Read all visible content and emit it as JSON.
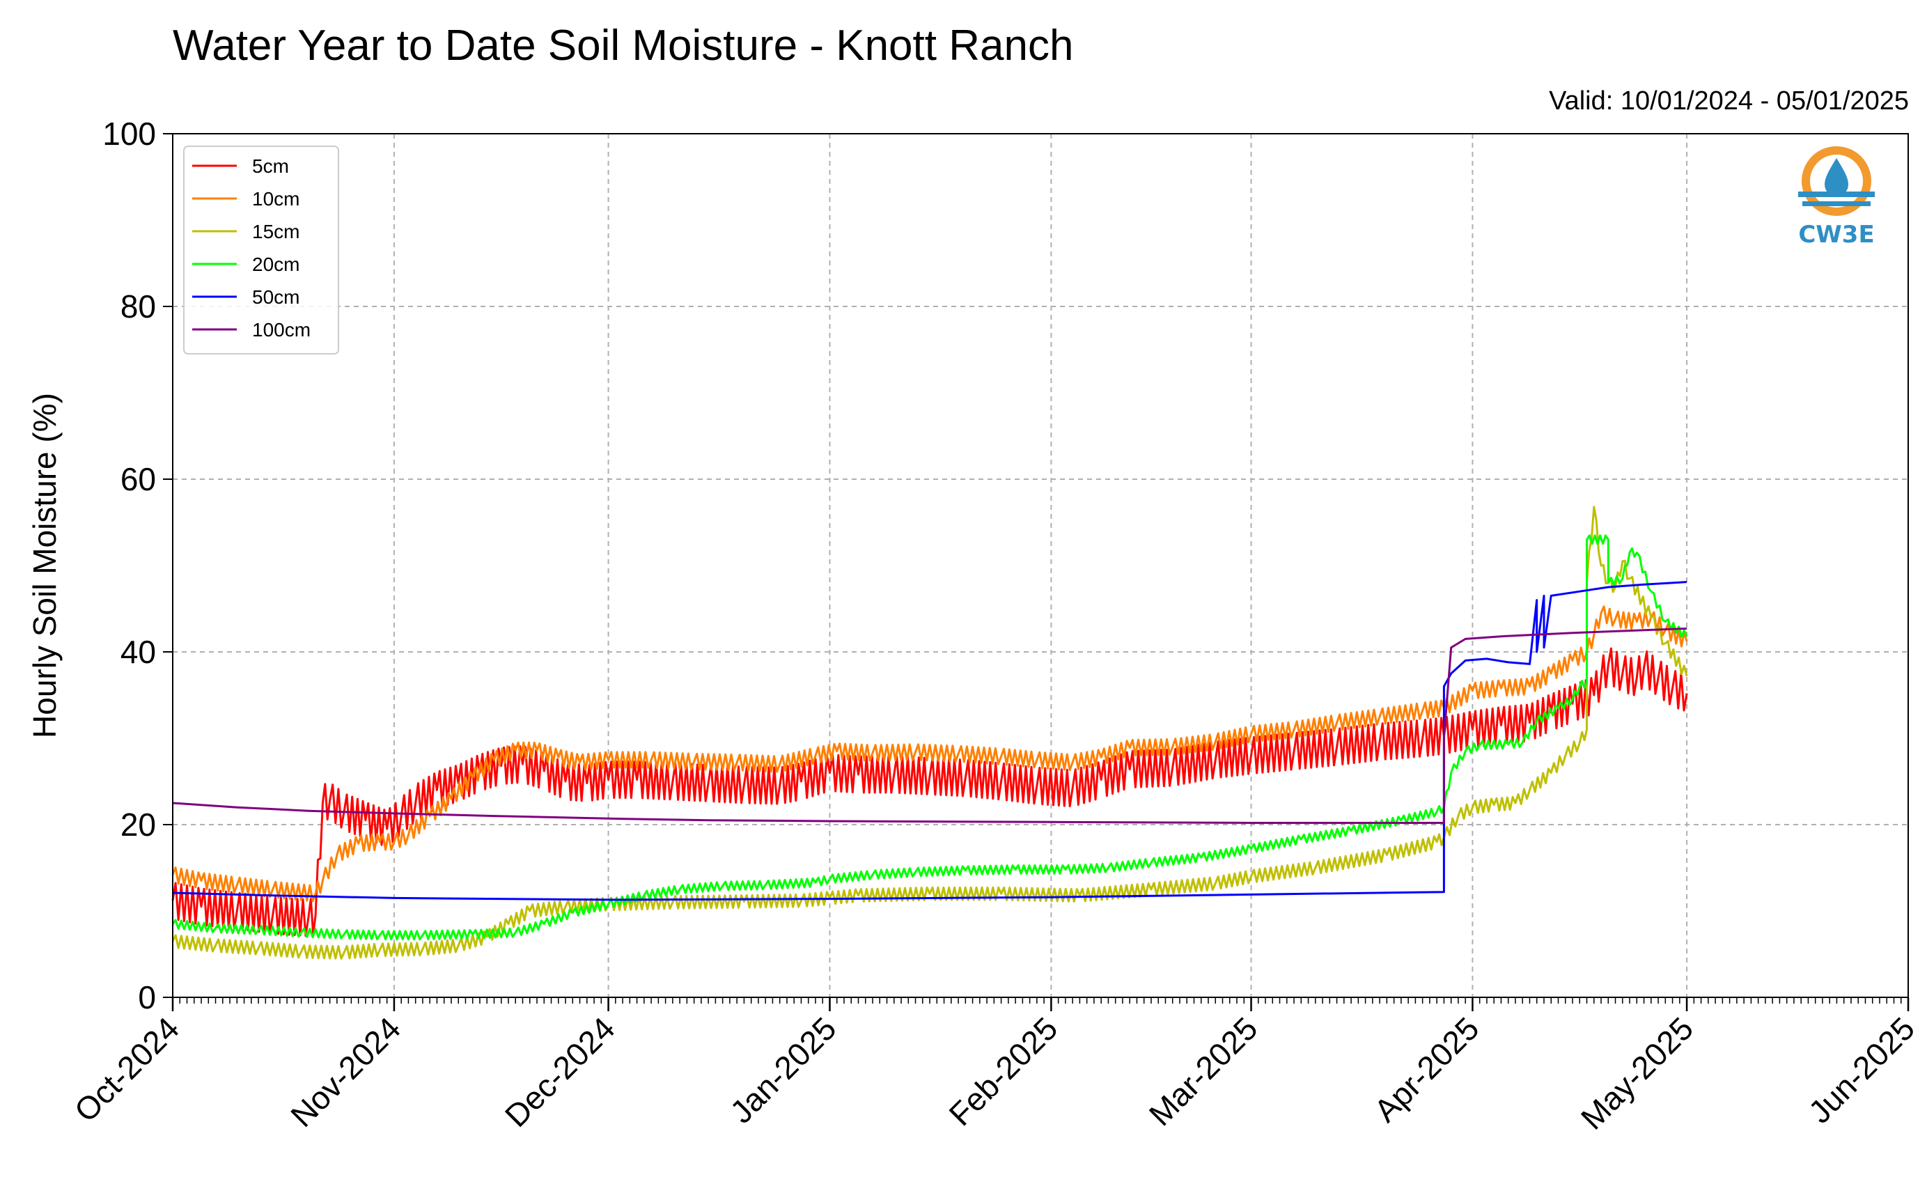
{
  "header": {
    "title": "Water Year to Date Soil Moisture - Knott Ranch",
    "valid": "Valid: 10/01/2024 - 05/01/2025"
  },
  "logo": {
    "text": "CW3E",
    "icon": "water-drop-logo-icon"
  },
  "colors": {
    "5cm": "#ff0000",
    "10cm": "#ff8000",
    "15cm": "#bfbf00",
    "20cm": "#00ff00",
    "50cm": "#0000ff",
    "100cm": "#800080"
  },
  "chart_data": {
    "type": "line",
    "title": "Water Year to Date Soil Moisture - Knott Ranch",
    "ylabel": "Hourly Soil Moisture (%)",
    "xlabel": "",
    "xlim": [
      "2024-10-01",
      "2025-06-01"
    ],
    "ylim": [
      0,
      100
    ],
    "y_ticks": [
      0,
      20,
      40,
      60,
      80,
      100
    ],
    "x_ticks": [
      {
        "date": "2024-10-01",
        "label": "Oct-2024"
      },
      {
        "date": "2024-11-01",
        "label": "Nov-2024"
      },
      {
        "date": "2024-12-01",
        "label": "Dec-2024"
      },
      {
        "date": "2025-01-01",
        "label": "Jan-2025"
      },
      {
        "date": "2025-02-01",
        "label": "Feb-2025"
      },
      {
        "date": "2025-03-01",
        "label": "Mar-2025"
      },
      {
        "date": "2025-04-01",
        "label": "Apr-2025"
      },
      {
        "date": "2025-05-01",
        "label": "May-2025"
      },
      {
        "date": "2025-06-01",
        "label": "Jun-2025"
      }
    ],
    "grid": true,
    "legend_position": "top-left",
    "series": [
      {
        "name": "5cm",
        "color": "#ff0000",
        "points": [
          [
            "2024-10-01",
            11.2
          ],
          [
            "2024-10-05",
            10.5
          ],
          [
            "2024-10-10",
            10.0
          ],
          [
            "2024-10-15",
            9.5
          ],
          [
            "2024-10-20",
            9.2
          ],
          [
            "2024-10-21",
            9.5
          ],
          [
            "2024-10-22",
            22.5
          ],
          [
            "2024-10-23",
            22.8
          ],
          [
            "2024-10-25",
            21.5
          ],
          [
            "2024-10-28",
            20.5
          ],
          [
            "2024-10-31",
            19.5
          ],
          [
            "2024-11-02",
            21.0
          ],
          [
            "2024-11-04",
            22.5
          ],
          [
            "2024-11-07",
            24.0
          ],
          [
            "2024-11-10",
            24.8
          ],
          [
            "2024-11-13",
            26.0
          ],
          [
            "2024-11-16",
            26.8
          ],
          [
            "2024-11-19",
            27.0
          ],
          [
            "2024-11-22",
            26.2
          ],
          [
            "2024-11-25",
            25.0
          ],
          [
            "2024-11-28",
            24.8
          ],
          [
            "2024-12-01",
            25.2
          ],
          [
            "2024-12-05",
            25.2
          ],
          [
            "2024-12-10",
            25.0
          ],
          [
            "2024-12-15",
            24.8
          ],
          [
            "2024-12-20",
            24.6
          ],
          [
            "2024-12-25",
            24.5
          ],
          [
            "2024-12-28",
            25.0
          ],
          [
            "2025-01-01",
            26.0
          ],
          [
            "2025-01-05",
            25.8
          ],
          [
            "2025-01-10",
            25.8
          ],
          [
            "2025-01-15",
            25.6
          ],
          [
            "2025-01-20",
            25.4
          ],
          [
            "2025-01-25",
            25.0
          ],
          [
            "2025-01-30",
            24.5
          ],
          [
            "2025-02-04",
            24.2
          ],
          [
            "2025-02-08",
            25.2
          ],
          [
            "2025-02-12",
            26.4
          ],
          [
            "2025-02-18",
            26.6
          ],
          [
            "2025-02-24",
            27.5
          ],
          [
            "2025-03-01",
            28.0
          ],
          [
            "2025-03-07",
            28.5
          ],
          [
            "2025-03-13",
            29.0
          ],
          [
            "2025-03-19",
            29.6
          ],
          [
            "2025-03-25",
            30.0
          ],
          [
            "2025-03-28",
            30.3
          ],
          [
            "2025-04-01",
            31.0
          ],
          [
            "2025-04-05",
            31.5
          ],
          [
            "2025-04-09",
            31.8
          ],
          [
            "2025-04-12",
            33.0
          ],
          [
            "2025-04-15",
            34.0
          ],
          [
            "2025-04-18",
            35.0
          ],
          [
            "2025-04-19",
            37.0
          ],
          [
            "2025-04-20",
            38.5
          ],
          [
            "2025-04-22",
            37.5
          ],
          [
            "2025-04-24",
            37.0
          ],
          [
            "2025-04-25",
            38.2
          ],
          [
            "2025-04-27",
            37.0
          ],
          [
            "2025-04-29",
            35.8
          ],
          [
            "2025-05-01",
            35.2
          ]
        ]
      },
      {
        "name": "10cm",
        "color": "#ff8000",
        "points": [
          [
            "2024-10-01",
            14.2
          ],
          [
            "2024-10-05",
            13.5
          ],
          [
            "2024-10-10",
            13.0
          ],
          [
            "2024-10-15",
            12.5
          ],
          [
            "2024-10-21",
            12.0
          ],
          [
            "2024-10-22",
            13.5
          ],
          [
            "2024-10-24",
            16.5
          ],
          [
            "2024-10-27",
            17.8
          ],
          [
            "2024-10-30",
            18.0
          ],
          [
            "2024-11-01",
            18.0
          ],
          [
            "2024-11-03",
            18.8
          ],
          [
            "2024-11-06",
            21.0
          ],
          [
            "2024-11-09",
            23.0
          ],
          [
            "2024-11-12",
            25.5
          ],
          [
            "2024-11-15",
            27.5
          ],
          [
            "2024-11-18",
            28.6
          ],
          [
            "2024-11-21",
            28.6
          ],
          [
            "2024-11-24",
            27.8
          ],
          [
            "2024-11-27",
            27.2
          ],
          [
            "2024-12-01",
            27.5
          ],
          [
            "2024-12-07",
            27.5
          ],
          [
            "2024-12-13",
            27.3
          ],
          [
            "2024-12-19",
            27.2
          ],
          [
            "2024-12-25",
            27.0
          ],
          [
            "2024-12-30",
            28.0
          ],
          [
            "2025-01-02",
            28.5
          ],
          [
            "2025-01-07",
            28.3
          ],
          [
            "2025-01-13",
            28.4
          ],
          [
            "2025-01-19",
            28.2
          ],
          [
            "2025-01-25",
            27.9
          ],
          [
            "2025-01-30",
            27.5
          ],
          [
            "2025-02-04",
            27.2
          ],
          [
            "2025-02-08",
            27.8
          ],
          [
            "2025-02-12",
            28.9
          ],
          [
            "2025-02-18",
            29.0
          ],
          [
            "2025-02-24",
            29.6
          ],
          [
            "2025-03-01",
            30.5
          ],
          [
            "2025-03-07",
            31.0
          ],
          [
            "2025-03-13",
            31.8
          ],
          [
            "2025-03-19",
            32.5
          ],
          [
            "2025-03-25",
            33.2
          ],
          [
            "2025-03-28",
            33.5
          ],
          [
            "2025-04-01",
            35.5
          ],
          [
            "2025-04-05",
            35.8
          ],
          [
            "2025-04-09",
            36.0
          ],
          [
            "2025-04-12",
            37.5
          ],
          [
            "2025-04-15",
            39.0
          ],
          [
            "2025-04-17",
            40.0
          ],
          [
            "2025-04-18",
            42.0
          ],
          [
            "2025-04-19",
            44.5
          ],
          [
            "2025-04-21",
            43.8
          ],
          [
            "2025-04-24",
            43.5
          ],
          [
            "2025-04-26",
            44.0
          ],
          [
            "2025-04-28",
            42.5
          ],
          [
            "2025-05-01",
            41.2
          ]
        ]
      },
      {
        "name": "15cm",
        "color": "#bfbf00",
        "points": [
          [
            "2024-10-01",
            6.5
          ],
          [
            "2024-10-07",
            6.0
          ],
          [
            "2024-10-13",
            5.7
          ],
          [
            "2024-10-19",
            5.3
          ],
          [
            "2024-10-25",
            5.2
          ],
          [
            "2024-10-30",
            5.5
          ],
          [
            "2024-11-05",
            5.6
          ],
          [
            "2024-11-10",
            6.0
          ],
          [
            "2024-11-14",
            7.0
          ],
          [
            "2024-11-17",
            8.5
          ],
          [
            "2024-11-20",
            10.0
          ],
          [
            "2024-11-25",
            10.5
          ],
          [
            "2024-12-01",
            10.8
          ],
          [
            "2024-12-10",
            11.0
          ],
          [
            "2024-12-20",
            11.1
          ],
          [
            "2024-12-28",
            11.2
          ],
          [
            "2025-01-01",
            11.5
          ],
          [
            "2025-01-05",
            11.8
          ],
          [
            "2025-01-15",
            12.0
          ],
          [
            "2025-01-25",
            12.0
          ],
          [
            "2025-02-05",
            11.8
          ],
          [
            "2025-02-15",
            12.5
          ],
          [
            "2025-02-24",
            13.2
          ],
          [
            "2025-03-01",
            14.0
          ],
          [
            "2025-03-10",
            15.0
          ],
          [
            "2025-03-20",
            16.5
          ],
          [
            "2025-03-27",
            18.0
          ],
          [
            "2025-03-28",
            18.5
          ],
          [
            "2025-03-30",
            21.0
          ],
          [
            "2025-04-01",
            22.0
          ],
          [
            "2025-04-04",
            22.3
          ],
          [
            "2025-04-07",
            22.5
          ],
          [
            "2025-04-09",
            24.0
          ],
          [
            "2025-04-12",
            26.0
          ],
          [
            "2025-04-14",
            28.0
          ],
          [
            "2025-04-16",
            29.5
          ],
          [
            "2025-04-17",
            31.0
          ],
          [
            "2025-04-17",
            48.0
          ],
          [
            "2025-04-18",
            56.8
          ],
          [
            "2025-04-19",
            50.0
          ],
          [
            "2025-04-20",
            48.0
          ],
          [
            "2025-04-21",
            47.5
          ],
          [
            "2025-04-22",
            50.5
          ],
          [
            "2025-04-23",
            48.5
          ],
          [
            "2025-04-26",
            44.0
          ],
          [
            "2025-04-28",
            41.0
          ],
          [
            "2025-05-01",
            37.2
          ]
        ]
      },
      {
        "name": "20cm",
        "color": "#00ff00",
        "points": [
          [
            "2024-10-01",
            8.5
          ],
          [
            "2024-10-07",
            8.0
          ],
          [
            "2024-10-13",
            7.8
          ],
          [
            "2024-10-19",
            7.5
          ],
          [
            "2024-10-25",
            7.3
          ],
          [
            "2024-10-30",
            7.2
          ],
          [
            "2024-11-05",
            7.2
          ],
          [
            "2024-11-12",
            7.3
          ],
          [
            "2024-11-18",
            7.5
          ],
          [
            "2024-11-22",
            8.5
          ],
          [
            "2024-11-26",
            9.8
          ],
          [
            "2024-12-01",
            10.8
          ],
          [
            "2024-12-06",
            11.8
          ],
          [
            "2024-12-11",
            12.5
          ],
          [
            "2024-12-17",
            12.9
          ],
          [
            "2024-12-23",
            13.0
          ],
          [
            "2024-12-30",
            13.3
          ],
          [
            "2025-01-01",
            13.7
          ],
          [
            "2025-01-07",
            14.2
          ],
          [
            "2025-01-13",
            14.5
          ],
          [
            "2025-01-20",
            14.7
          ],
          [
            "2025-01-27",
            14.8
          ],
          [
            "2025-02-03",
            14.8
          ],
          [
            "2025-02-09",
            15.0
          ],
          [
            "2025-02-15",
            15.6
          ],
          [
            "2025-02-22",
            16.2
          ],
          [
            "2025-03-01",
            17.2
          ],
          [
            "2025-03-08",
            18.3
          ],
          [
            "2025-03-15",
            19.3
          ],
          [
            "2025-03-22",
            20.5
          ],
          [
            "2025-03-27",
            21.5
          ],
          [
            "2025-03-28",
            22.0
          ],
          [
            "2025-03-29",
            26.0
          ],
          [
            "2025-03-31",
            28.5
          ],
          [
            "2025-04-02",
            29.2
          ],
          [
            "2025-04-06",
            29.3
          ],
          [
            "2025-04-08",
            29.5
          ],
          [
            "2025-04-10",
            32.0
          ],
          [
            "2025-04-13",
            33.5
          ],
          [
            "2025-04-15",
            34.5
          ],
          [
            "2025-04-16",
            36.0
          ],
          [
            "2025-04-17",
            36.5
          ],
          [
            "2025-04-17",
            53.0
          ],
          [
            "2025-04-20",
            53.0
          ],
          [
            "2025-04-20",
            48.0
          ],
          [
            "2025-04-22",
            48.5
          ],
          [
            "2025-04-23",
            51.5
          ],
          [
            "2025-04-24",
            51.5
          ],
          [
            "2025-04-26",
            47.0
          ],
          [
            "2025-04-28",
            43.5
          ],
          [
            "2025-05-01",
            41.8
          ]
        ]
      },
      {
        "name": "50cm",
        "color": "#0000ff",
        "points": [
          [
            "2024-10-01",
            12.1
          ],
          [
            "2024-10-15",
            11.8
          ],
          [
            "2024-11-01",
            11.5
          ],
          [
            "2024-12-01",
            11.3
          ],
          [
            "2025-01-01",
            11.4
          ],
          [
            "2025-02-01",
            11.6
          ],
          [
            "2025-03-01",
            11.9
          ],
          [
            "2025-03-28",
            12.2
          ],
          [
            "2025-03-28",
            36.0
          ],
          [
            "2025-03-29",
            37.5
          ],
          [
            "2025-03-31",
            39.0
          ],
          [
            "2025-04-03",
            39.2
          ],
          [
            "2025-04-06",
            38.8
          ],
          [
            "2025-04-09",
            38.6
          ],
          [
            "2025-04-10",
            46.0
          ],
          [
            "2025-04-10",
            40.0
          ],
          [
            "2025-04-11",
            46.5
          ],
          [
            "2025-04-11",
            40.5
          ],
          [
            "2025-04-12",
            46.5
          ],
          [
            "2025-04-16",
            47.0
          ],
          [
            "2025-04-20",
            47.5
          ],
          [
            "2025-04-25",
            47.8
          ],
          [
            "2025-05-01",
            48.1
          ]
        ]
      },
      {
        "name": "100cm",
        "color": "#800080",
        "points": [
          [
            "2024-10-01",
            22.5
          ],
          [
            "2024-10-10",
            22.0
          ],
          [
            "2024-10-20",
            21.6
          ],
          [
            "2024-11-01",
            21.3
          ],
          [
            "2024-11-15",
            21.0
          ],
          [
            "2024-12-01",
            20.7
          ],
          [
            "2024-12-15",
            20.5
          ],
          [
            "2025-01-01",
            20.4
          ],
          [
            "2025-02-01",
            20.3
          ],
          [
            "2025-03-01",
            20.2
          ],
          [
            "2025-03-28",
            20.2
          ],
          [
            "2025-03-28",
            30.0
          ],
          [
            "2025-03-29",
            40.5
          ],
          [
            "2025-03-31",
            41.5
          ],
          [
            "2025-04-05",
            41.8
          ],
          [
            "2025-04-15",
            42.2
          ],
          [
            "2025-05-01",
            42.7
          ]
        ]
      }
    ]
  }
}
